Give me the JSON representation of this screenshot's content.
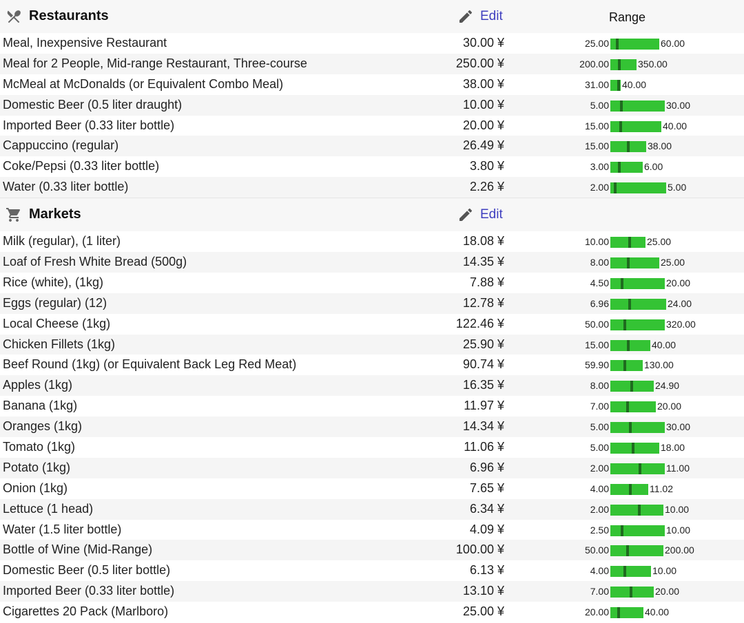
{
  "currency": "¥",
  "colors": {
    "bar": "#34c334",
    "marker": "#1f6b1f",
    "edit_link": "#3f3fbf",
    "alt_row": "#f5f5f5"
  },
  "sections": [
    {
      "title": "Restaurants",
      "icon": "fork-knife-icon",
      "edit_label": "Edit",
      "range_label": "Range",
      "items": [
        {
          "name": "Meal, Inexpensive Restaurant",
          "price": "30.00 ¥",
          "min": "25.00",
          "max": "60.00",
          "bar_fraction": 0.76,
          "marker_fraction": 0.14
        },
        {
          "name": "Meal for 2 People, Mid-range Restaurant, Three-course",
          "price": "250.00 ¥",
          "min": "200.00",
          "max": "350.00",
          "bar_fraction": 0.4,
          "marker_fraction": 0.33
        },
        {
          "name": "McMeal at McDonalds (or Equivalent Combo Meal)",
          "price": "38.00 ¥",
          "min": "31.00",
          "max": "40.00",
          "bar_fraction": 0.16,
          "marker_fraction": 0.78
        },
        {
          "name": "Domestic Beer (0.5 liter draught)",
          "price": "10.00 ¥",
          "min": "5.00",
          "max": "30.00",
          "bar_fraction": 0.84,
          "marker_fraction": 0.2
        },
        {
          "name": "Imported Beer (0.33 liter bottle)",
          "price": "20.00 ¥",
          "min": "15.00",
          "max": "40.00",
          "bar_fraction": 0.79,
          "marker_fraction": 0.2
        },
        {
          "name": "Cappuccino (regular)",
          "price": "26.49 ¥",
          "min": "15.00",
          "max": "38.00",
          "bar_fraction": 0.55,
          "marker_fraction": 0.5
        },
        {
          "name": "Coke/Pepsi (0.33 liter bottle)",
          "price": "3.80 ¥",
          "min": "3.00",
          "max": "6.00",
          "bar_fraction": 0.5,
          "marker_fraction": 0.27
        },
        {
          "name": "Water (0.33 liter bottle)",
          "price": "2.26 ¥",
          "min": "2.00",
          "max": "5.00",
          "bar_fraction": 0.86,
          "marker_fraction": 0.09
        }
      ]
    },
    {
      "title": "Markets",
      "icon": "shopping-cart-icon",
      "edit_label": "Edit",
      "range_label": "",
      "items": [
        {
          "name": "Milk (regular), (1 liter)",
          "price": "18.08 ¥",
          "min": "10.00",
          "max": "25.00",
          "bar_fraction": 0.54,
          "marker_fraction": 0.54
        },
        {
          "name": "Loaf of Fresh White Bread (500g)",
          "price": "14.35 ¥",
          "min": "8.00",
          "max": "25.00",
          "bar_fraction": 0.76,
          "marker_fraction": 0.37
        },
        {
          "name": "Rice (white), (1kg)",
          "price": "7.88 ¥",
          "min": "4.50",
          "max": "20.00",
          "bar_fraction": 0.84,
          "marker_fraction": 0.22
        },
        {
          "name": "Eggs (regular) (12)",
          "price": "12.78 ¥",
          "min": "6.96",
          "max": "24.00",
          "bar_fraction": 0.86,
          "marker_fraction": 0.34
        },
        {
          "name": "Local Cheese (1kg)",
          "price": "122.46 ¥",
          "min": "50.00",
          "max": "320.00",
          "bar_fraction": 0.84,
          "marker_fraction": 0.27
        },
        {
          "name": "Chicken Fillets (1kg)",
          "price": "25.90 ¥",
          "min": "15.00",
          "max": "40.00",
          "bar_fraction": 0.62,
          "marker_fraction": 0.44
        },
        {
          "name": "Beef Round (1kg) (or Equivalent Back Leg Red Meat)",
          "price": "90.74 ¥",
          "min": "59.90",
          "max": "130.00",
          "bar_fraction": 0.5,
          "marker_fraction": 0.44
        },
        {
          "name": "Apples (1kg)",
          "price": "16.35 ¥",
          "min": "8.00",
          "max": "24.90",
          "bar_fraction": 0.67,
          "marker_fraction": 0.49
        },
        {
          "name": "Banana (1kg)",
          "price": "11.97 ¥",
          "min": "7.00",
          "max": "20.00",
          "bar_fraction": 0.7,
          "marker_fraction": 0.38
        },
        {
          "name": "Oranges (1kg)",
          "price": "14.34 ¥",
          "min": "5.00",
          "max": "30.00",
          "bar_fraction": 0.84,
          "marker_fraction": 0.37
        },
        {
          "name": "Tomato (1kg)",
          "price": "11.06 ¥",
          "min": "5.00",
          "max": "18.00",
          "bar_fraction": 0.75,
          "marker_fraction": 0.47
        },
        {
          "name": "Potato (1kg)",
          "price": "6.96 ¥",
          "min": "2.00",
          "max": "11.00",
          "bar_fraction": 0.84,
          "marker_fraction": 0.55
        },
        {
          "name": "Onion (1kg)",
          "price": "7.65 ¥",
          "min": "4.00",
          "max": "11.02",
          "bar_fraction": 0.59,
          "marker_fraction": 0.52
        },
        {
          "name": "Lettuce (1 head)",
          "price": "6.34 ¥",
          "min": "2.00",
          "max": "10.00",
          "bar_fraction": 0.82,
          "marker_fraction": 0.54
        },
        {
          "name": "Water (1.5 liter bottle)",
          "price": "4.09 ¥",
          "min": "2.50",
          "max": "10.00",
          "bar_fraction": 0.84,
          "marker_fraction": 0.21
        },
        {
          "name": "Bottle of Wine (Mid-Range)",
          "price": "100.00 ¥",
          "min": "50.00",
          "max": "200.00",
          "bar_fraction": 0.82,
          "marker_fraction": 0.33
        },
        {
          "name": "Domestic Beer (0.5 liter bottle)",
          "price": "6.13 ¥",
          "min": "4.00",
          "max": "10.00",
          "bar_fraction": 0.63,
          "marker_fraction": 0.36
        },
        {
          "name": "Imported Beer (0.33 liter bottle)",
          "price": "13.10 ¥",
          "min": "7.00",
          "max": "20.00",
          "bar_fraction": 0.67,
          "marker_fraction": 0.47
        },
        {
          "name": "Cigarettes 20 Pack (Marlboro)",
          "price": "25.00 ¥",
          "min": "20.00",
          "max": "40.00",
          "bar_fraction": 0.51,
          "marker_fraction": 0.25
        }
      ]
    }
  ]
}
